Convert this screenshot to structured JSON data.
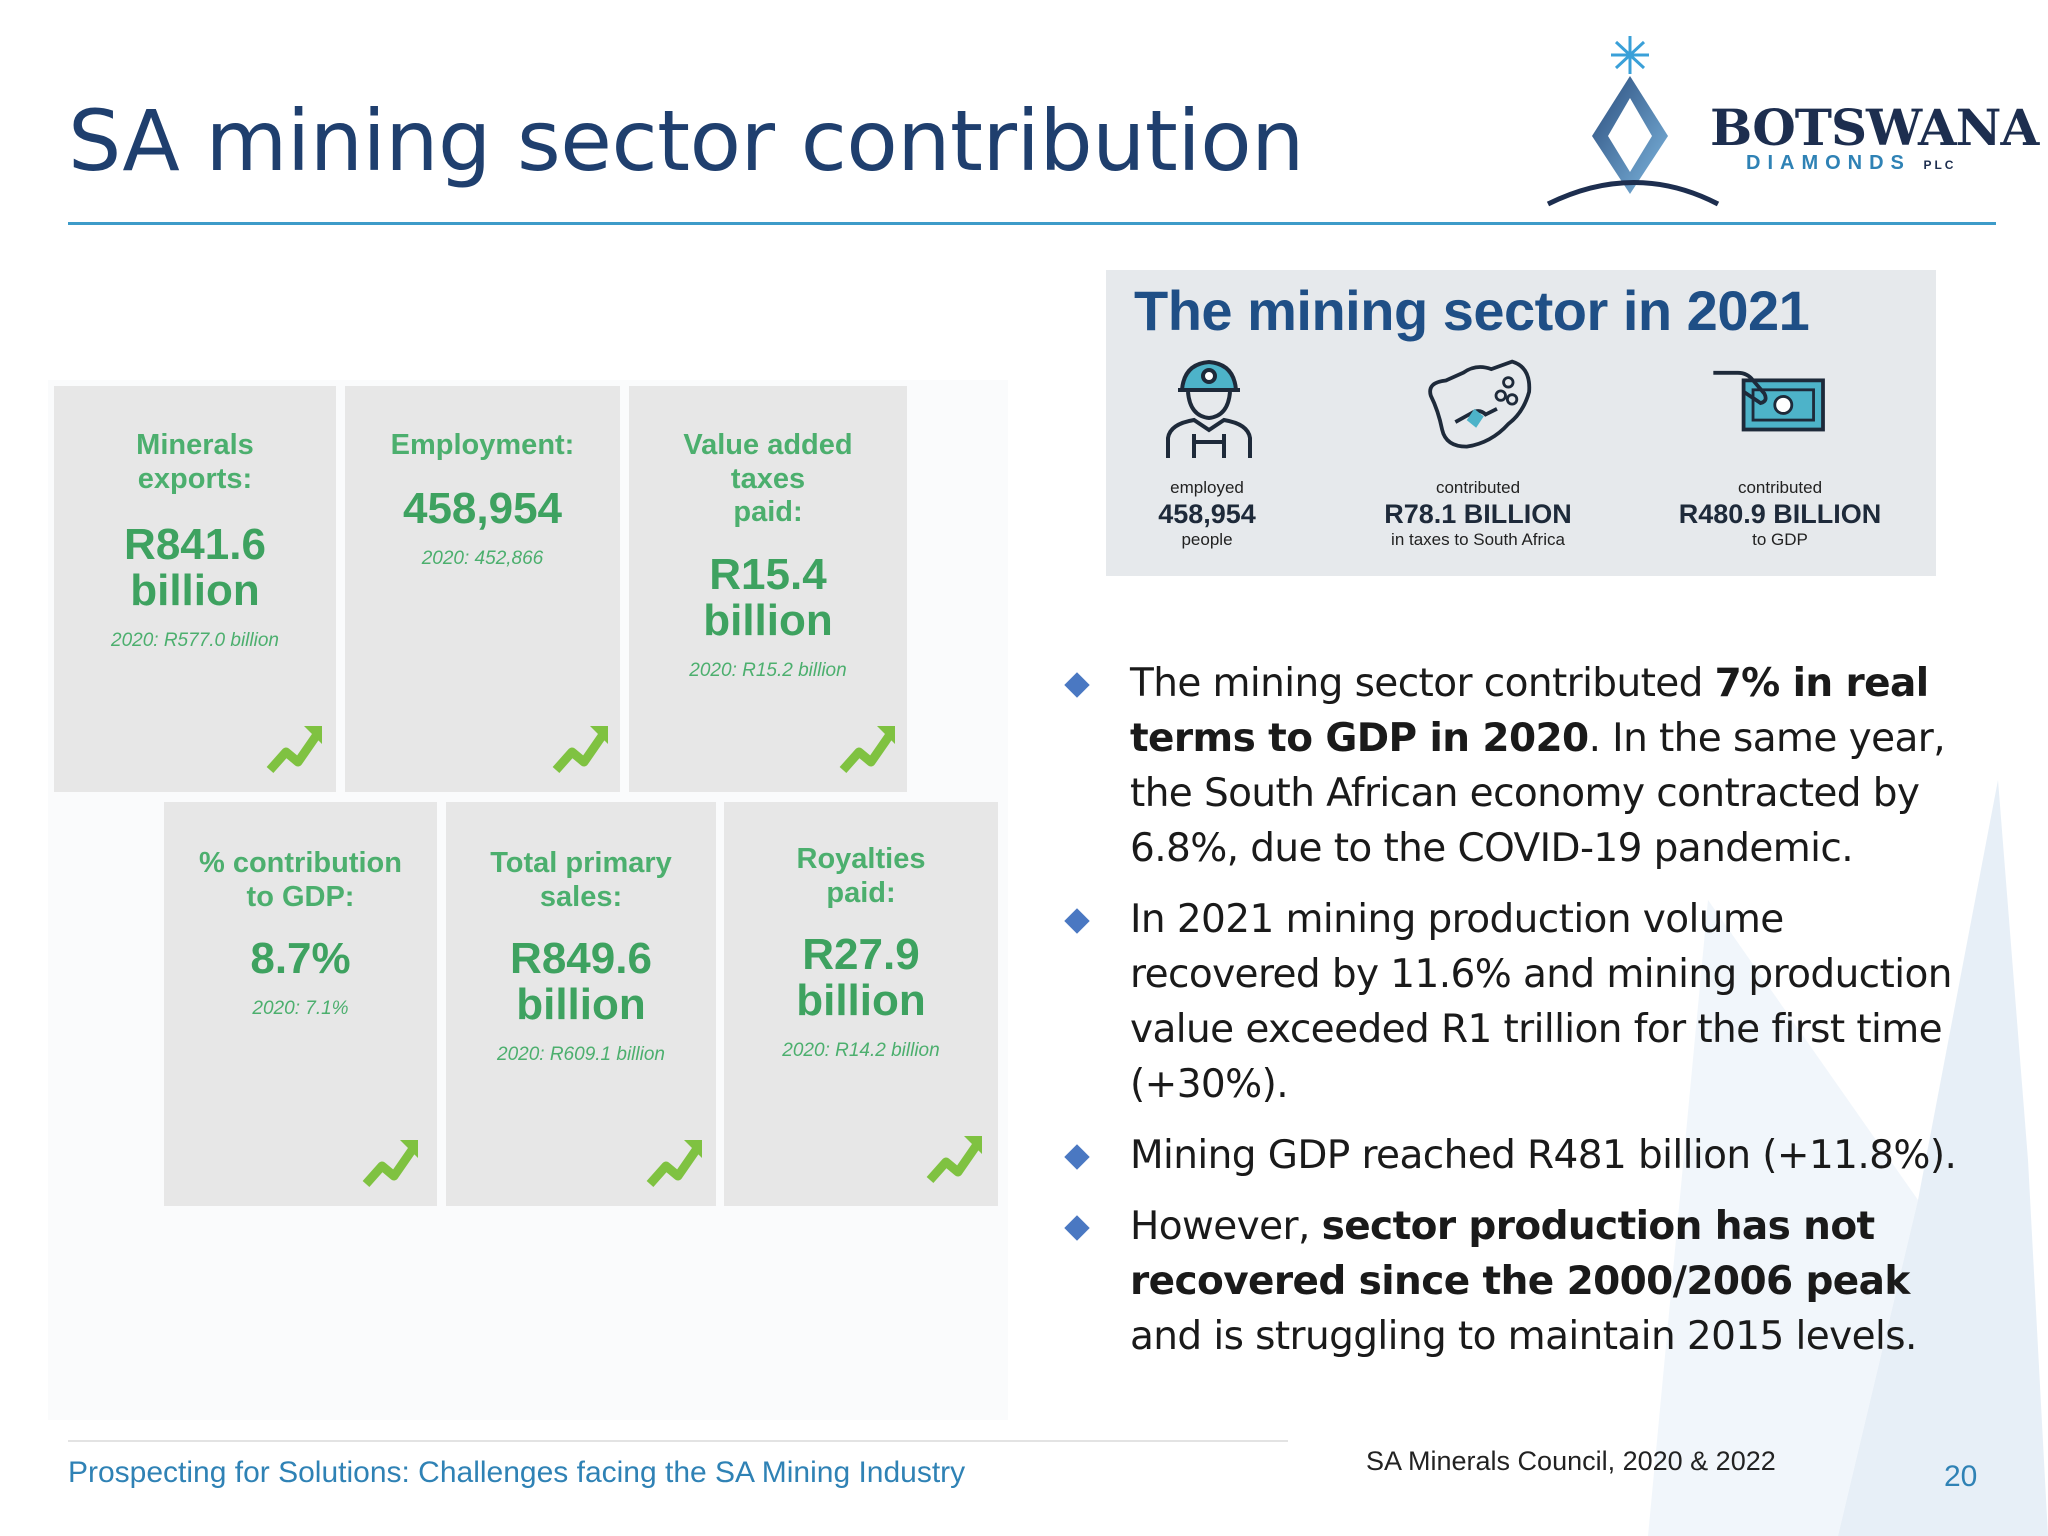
{
  "slide": {
    "title": "SA mining sector contribution",
    "footer": "Prospecting for Solutions: Challenges facing the SA Mining Industry",
    "source": "SA Minerals Council, 2020 & 2022",
    "page_number": "20"
  },
  "logo": {
    "word": "BOTSWANA",
    "sub": "DIAMONDS",
    "plc": "PLC"
  },
  "cards": [
    {
      "label1": "Minerals",
      "label2": "exports:",
      "label3": "",
      "value1": "R841.6",
      "value2": "billion",
      "prev": "2020: R577.0 billion"
    },
    {
      "label1": "Employment:",
      "label2": "",
      "label3": "",
      "value1": "458,954",
      "value2": "",
      "prev": "2020: 452,866"
    },
    {
      "label1": "Value added",
      "label2": "taxes",
      "label3": "paid:",
      "value1": "R15.4",
      "value2": "billion",
      "prev": "2020: R15.2 billion"
    },
    {
      "label1": "% contribution",
      "label2": "to GDP:",
      "label3": "",
      "value1": "8.7%",
      "value2": "",
      "prev": "2020: 7.1%"
    },
    {
      "label1": "Total primary",
      "label2": "sales:",
      "label3": "",
      "value1": "R849.6",
      "value2": "billion",
      "prev": "2020: R609.1 billion"
    },
    {
      "label1": "Royalties",
      "label2": "paid:",
      "label3": "",
      "value1": "R27.9",
      "value2": "billion",
      "prev": "2020: R14.2 billion"
    }
  ],
  "infographic": {
    "title": "The mining sector in 2021",
    "stats": [
      {
        "top": "employed",
        "value": "458,954",
        "bottom": "people"
      },
      {
        "top": "contributed",
        "value": "R78.1 BILLION",
        "bottom": "in taxes to South Africa"
      },
      {
        "top": "contributed",
        "value": "R480.9 BILLION",
        "bottom": "to GDP"
      }
    ]
  },
  "bullets": [
    {
      "parts": [
        {
          "text": "The mining sector contributed ",
          "bold": false
        },
        {
          "text": "7% in real terms to GDP in 2020",
          "bold": true
        },
        {
          "text": ". In the same year, the South African economy contracted by 6.8%, due to the COVID-19 pandemic.",
          "bold": false
        }
      ]
    },
    {
      "parts": [
        {
          "text": "In 2021 mining production volume recovered by 11.6% and mining production value exceeded R1 trillion for the first time (+30%).",
          "bold": false
        }
      ]
    },
    {
      "parts": [
        {
          "text": "Mining GDP reached R481 billion (+11.8%).",
          "bold": false
        }
      ]
    },
    {
      "parts": [
        {
          "text": "However, ",
          "bold": false
        },
        {
          "text": "sector production has not recovered since the 2000/2006 peak",
          "bold": true
        },
        {
          "text": " and is struggling to maintain 2015 levels.",
          "bold": false
        }
      ]
    }
  ],
  "colors": {
    "title": "#1f3f6e",
    "rule": "#3d9bc9",
    "card_green": "#3ea260",
    "bullet_diamond": "#4a78c2",
    "footer": "#2f82b5"
  },
  "icons": [
    "trend-up-icon",
    "miner-icon",
    "south-africa-map-icon",
    "cash-hand-icon",
    "diamond-logo-icon"
  ]
}
